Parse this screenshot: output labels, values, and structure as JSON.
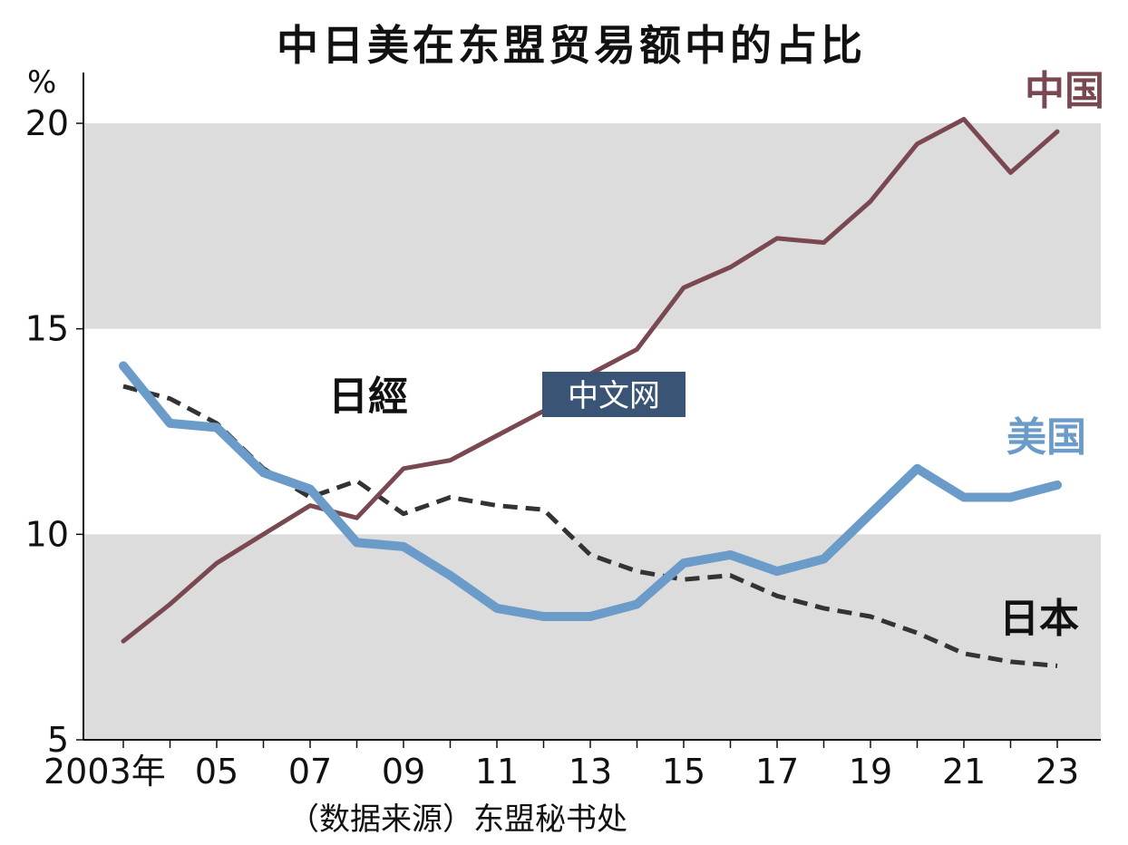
{
  "chart_data": {
    "type": "line",
    "title": "中日美在东盟贸易额中的占比",
    "y_unit": "%",
    "ylim": [
      5,
      21
    ],
    "y_ticks": [
      "5",
      "10",
      "15",
      "20"
    ],
    "x": [
      2003,
      2004,
      2005,
      2006,
      2007,
      2008,
      2009,
      2010,
      2011,
      2012,
      2013,
      2014,
      2015,
      2016,
      2017,
      2018,
      2019,
      2020,
      2021,
      2022,
      2023
    ],
    "x_ticks": [
      {
        "year": 2003,
        "label": "2003年"
      },
      {
        "year": 2005,
        "label": "05"
      },
      {
        "year": 2007,
        "label": "07"
      },
      {
        "year": 2009,
        "label": "09"
      },
      {
        "year": 2011,
        "label": "11"
      },
      {
        "year": 2013,
        "label": "13"
      },
      {
        "year": 2015,
        "label": "15"
      },
      {
        "year": 2017,
        "label": "17"
      },
      {
        "year": 2019,
        "label": "19"
      },
      {
        "year": 2021,
        "label": "21"
      },
      {
        "year": 2023,
        "label": "23"
      }
    ],
    "bands": [
      [
        5,
        10
      ],
      [
        15,
        20
      ]
    ],
    "band_color": "#dcdcdc",
    "series": [
      {
        "name": "中国",
        "color": "#7a4850",
        "style": "solid",
        "values": [
          7.4,
          8.3,
          9.3,
          10.0,
          10.7,
          10.4,
          11.6,
          11.8,
          12.4,
          13.0,
          13.9,
          14.5,
          16.0,
          16.5,
          17.2,
          17.1,
          18.1,
          19.5,
          20.1,
          18.8,
          19.8
        ]
      },
      {
        "name": "美国",
        "color": "#6b9bc9",
        "style": "thick",
        "values": [
          14.1,
          12.7,
          12.6,
          11.5,
          11.1,
          9.8,
          9.7,
          9.0,
          8.2,
          8.0,
          8.0,
          8.3,
          9.3,
          9.5,
          9.1,
          9.4,
          10.5,
          11.6,
          10.9,
          10.9,
          11.2
        ]
      },
      {
        "name": "日本",
        "color": "#333333",
        "style": "dashed",
        "values": [
          13.6,
          13.3,
          12.7,
          11.6,
          10.9,
          11.3,
          10.5,
          10.9,
          10.7,
          10.6,
          9.5,
          9.1,
          8.9,
          9.0,
          8.5,
          8.2,
          8.0,
          7.6,
          7.1,
          6.9,
          6.8
        ]
      }
    ],
    "source": "（数据来源）东盟秘书处",
    "grid": false,
    "legend": "inline labels at right"
  },
  "watermark": {
    "logo_text": "日經",
    "badge_text": "中文网"
  }
}
